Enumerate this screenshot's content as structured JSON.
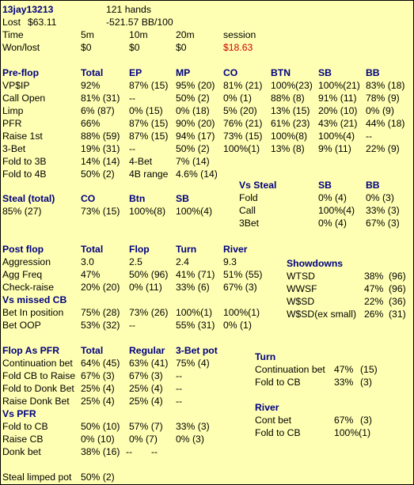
{
  "header": {
    "player": "13jay13213",
    "hands": "121 hands",
    "lost_label": "Lost",
    "lost_value": "$63.11",
    "bb_rate": "-521.57 BB/100",
    "time_row": [
      "Time",
      "5m",
      "10m",
      "20m",
      "session"
    ],
    "wonlost_row": [
      "Won/lost",
      "$0",
      "$0",
      "$0",
      "$18.63"
    ],
    "session_color": "#cc0000"
  },
  "preflop": {
    "header": [
      "Pre-flop",
      "Total",
      "EP",
      "MP",
      "CO",
      "BTN",
      "SB",
      "BB"
    ],
    "rows": [
      [
        "VP$IP",
        "92%",
        "87%  (15)",
        "95%  (20)",
        "81%  (21)",
        "100%(23)",
        "100%(21)",
        "83%  (18)"
      ],
      [
        "Call Open",
        "81%  (31)",
        "--",
        "50%  (2)",
        "0%    (1)",
        "88%  (8)",
        "91%  (11)",
        "78%  (9)"
      ],
      [
        "Limp",
        "6%    (87)",
        "0%    (15)",
        "0%    (18)",
        "5%    (20)",
        "13%  (15)",
        "20%  (10)",
        "0%    (9)"
      ],
      [
        "PFR",
        "66%",
        "87%  (15)",
        "90%  (20)",
        "76%  (21)",
        "61%  (23)",
        "43%  (21)",
        "44%  (18)"
      ],
      [
        "Raise 1st",
        "88%  (59)",
        "87%  (15)",
        "94%  (17)",
        "73%  (15)",
        "100%(8)",
        "100%(4)",
        "--"
      ],
      [
        "3-Bet",
        "19%  (31)",
        "--",
        "50%  (2)",
        "100%(1)",
        "13%  (8)",
        "9%    (11)",
        "22%  (9)"
      ],
      [
        "Fold to 3B",
        "14%  (14)",
        "4-Bet",
        "7%    (14)",
        "",
        "",
        "",
        ""
      ],
      [
        "Fold to 4B",
        "50%  (2)",
        "4B range",
        "4.6% (14)",
        "",
        "",
        "",
        ""
      ]
    ]
  },
  "vs_steal": {
    "header": [
      "Vs Steal",
      "SB",
      "BB"
    ],
    "rows": [
      [
        "Fold",
        "0%    (4)",
        "0%    (3)"
      ],
      [
        "Call",
        "100%(4)",
        "33%  (3)"
      ],
      [
        "3Bet",
        "0%    (4)",
        "67%  (3)"
      ]
    ]
  },
  "steal": {
    "header": [
      "Steal (total)",
      "CO",
      "Btn",
      "SB"
    ],
    "row": [
      "85%  (27)",
      "73%  (15)",
      "100%(8)",
      "100%(4)"
    ]
  },
  "postflop": {
    "header": [
      "Post flop",
      "Total",
      "Flop",
      "Turn",
      "River"
    ],
    "rows": [
      [
        "Aggression",
        "3.0",
        "2.5",
        "2.4",
        "9.3"
      ],
      [
        "Agg Freq",
        "47%",
        "50%  (96)",
        "41%  (71)",
        "51%  (55)"
      ],
      [
        "Check-raise",
        "20%  (20)",
        "0%    (11)",
        "33%  (6)",
        "67%  (3)"
      ]
    ],
    "missed_title": "Vs missed CB",
    "missed_rows": [
      [
        "Bet In position",
        "75%  (28)",
        "73%  (26)",
        "100%(1)",
        "100%(1)"
      ],
      [
        "Bet OOP",
        "53%  (32)",
        "--",
        "55%  (31)",
        "0%    (1)"
      ]
    ]
  },
  "showdowns": {
    "title": "Showdowns",
    "rows": [
      [
        "WTSD",
        "38%",
        "(96)"
      ],
      [
        "WWSF",
        "47%",
        "(96)"
      ],
      [
        "W$SD",
        "22%",
        "(36)"
      ],
      [
        "W$SD(ex small)",
        "26%",
        "(31)"
      ]
    ]
  },
  "flop_pfr": {
    "header": [
      "Flop As PFR",
      "Total",
      "Regular",
      "3-Bet pot"
    ],
    "rows": [
      [
        "Continuation bet",
        "64%  (45)",
        "63%  (41)",
        "75%  (4)"
      ],
      [
        "Fold CB to Raise",
        "67%  (3)",
        "67%  (3)",
        "--"
      ],
      [
        "Fold to Donk Bet",
        "25%  (4)",
        "25%  (4)",
        "--"
      ],
      [
        "Raise Donk Bet",
        "25%  (4)",
        "25%  (4)",
        "--"
      ]
    ],
    "vs_title": "Vs PFR",
    "vs_rows": [
      [
        "Fold to CB",
        "50%  (10)",
        "57%  (7)",
        "33%  (3)"
      ],
      [
        "Raise CB",
        "0%    (10)",
        "0%    (7)",
        "0%    (3)"
      ],
      [
        "Donk bet",
        "38%  (16)",
        "--",
        "--"
      ]
    ]
  },
  "turn": {
    "title": "Turn",
    "rows": [
      [
        "Continuation bet",
        "47%",
        "(15)"
      ],
      [
        "Fold to CB",
        "33%",
        "(3)"
      ]
    ]
  },
  "river": {
    "title": "River",
    "rows": [
      [
        "Cont bet",
        "67%",
        "(3)"
      ],
      [
        "Fold to CB",
        "100%(1)",
        ""
      ]
    ]
  },
  "footer": {
    "label": "Steal limped pot",
    "value": "50%  (2)"
  }
}
